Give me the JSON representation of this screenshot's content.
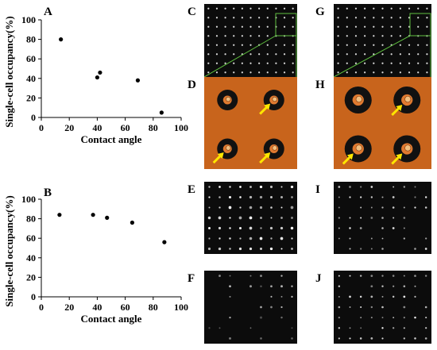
{
  "labels": {
    "A": "A",
    "B": "B",
    "C": "C",
    "D": "D",
    "E": "E",
    "F": "F",
    "G": "G",
    "H": "H",
    "I": "I",
    "J": "J"
  },
  "chart_data": [
    {
      "panel": "A",
      "type": "scatter",
      "xlabel": "Contact angle",
      "ylabel": "Single-cell occupancy(%)",
      "xlim": [
        0,
        100
      ],
      "ylim": [
        0,
        100
      ],
      "xticks": [
        "0",
        "20",
        "40",
        "60",
        "80",
        "100"
      ],
      "yticks": [
        "0",
        "20",
        "40",
        "60",
        "80",
        "100"
      ],
      "x": [
        14,
        40,
        42,
        69,
        86
      ],
      "y": [
        80,
        41,
        46,
        38,
        5
      ]
    },
    {
      "panel": "B",
      "type": "scatter",
      "xlabel": "Contact angle",
      "ylabel": "Single-cell occupancy(%)",
      "xlim": [
        0,
        100
      ],
      "ylim": [
        0,
        100
      ],
      "xticks": [
        "0",
        "20",
        "40",
        "60",
        "80",
        "100"
      ],
      "yticks": [
        "0",
        "20",
        "40",
        "60",
        "80",
        "100"
      ],
      "x": [
        13,
        37,
        47,
        65,
        88
      ],
      "y": [
        84,
        84,
        81,
        76,
        56
      ]
    }
  ],
  "colors": {
    "inset_line": "#5fbf3f",
    "arrow": "#ffe600",
    "micro_bg": "#0c0c0c",
    "optical_bg": "#c8641c"
  }
}
